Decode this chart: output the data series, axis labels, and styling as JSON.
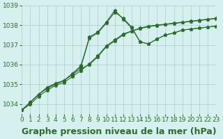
{
  "background_color": "#d6f0f0",
  "grid_color": "#aacccc",
  "line_color": "#2d6a2d",
  "title": "Graphe pression niveau de la mer (hPa)",
  "xlim": [
    0,
    23
  ],
  "ylim": [
    1033.5,
    1039.0
  ],
  "yticks": [
    1034,
    1035,
    1036,
    1037,
    1038,
    1039
  ],
  "xticks": [
    0,
    1,
    2,
    3,
    4,
    5,
    6,
    7,
    8,
    9,
    10,
    11,
    12,
    13,
    14,
    15,
    16,
    17,
    18,
    19,
    20,
    21,
    22,
    23
  ],
  "series": [
    [
      1033.7,
      1034.1,
      1034.5,
      1034.8,
      1035.0,
      1035.2,
      1035.5,
      1035.8,
      1036.0,
      1036.4,
      1036.9,
      1037.2,
      1037.5,
      1037.7,
      1037.85,
      1037.95,
      1038.0,
      1038.05,
      1038.1,
      1038.15,
      1038.2,
      1038.25,
      1038.3,
      1038.35
    ],
    [
      1033.7,
      1034.1,
      1034.5,
      1034.85,
      1035.05,
      1035.2,
      1035.55,
      1035.95,
      1037.4,
      1037.65,
      1038.15,
      1038.75,
      1038.3,
      1037.85,
      1037.15,
      1037.05,
      1037.3,
      1037.5,
      1037.6,
      1037.75,
      1037.8,
      1037.85,
      1037.9,
      1037.95
    ],
    [
      1033.7,
      1034.1,
      1034.5,
      1034.85,
      1035.05,
      1035.2,
      1035.55,
      1035.9,
      1037.35,
      1037.6,
      1038.1,
      1038.65,
      1038.35,
      1037.9,
      1037.15,
      1037.05,
      1037.3,
      1037.5,
      1037.6,
      1037.75,
      1037.8,
      1037.85,
      1037.9,
      1037.95
    ],
    [
      1033.7,
      1034.0,
      1034.4,
      1034.7,
      1034.95,
      1035.1,
      1035.4,
      1035.7,
      1036.05,
      1036.45,
      1036.95,
      1037.25,
      1037.55,
      1037.7,
      1037.82,
      1037.92,
      1037.98,
      1038.03,
      1038.08,
      1038.13,
      1038.18,
      1038.23,
      1038.28,
      1038.33
    ]
  ],
  "title_fontsize": 9,
  "tick_fontsize": 6.5
}
